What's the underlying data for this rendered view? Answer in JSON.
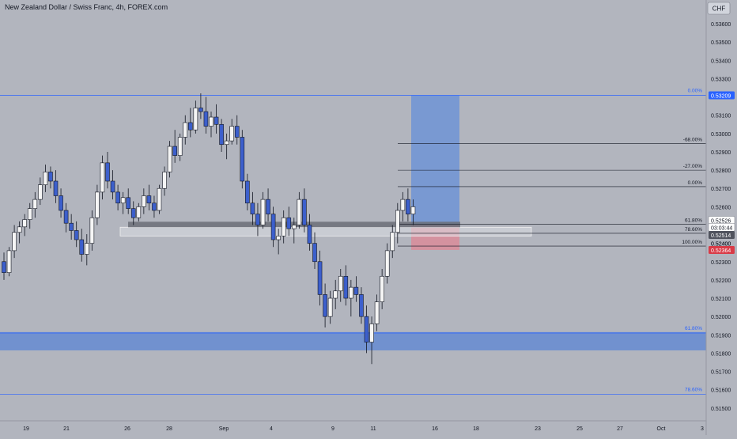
{
  "header": {
    "title": "New Zealand Dollar / Swiss Franc, 4h, FOREX.com"
  },
  "currency_badge": "CHF",
  "colors": {
    "background": "#b2b5be",
    "axis_panel": "#b2b5be",
    "candle_up": "#f5f5f5",
    "candle_down": "#3c5fcc",
    "wick": "#131722",
    "fib_blue": "#2962ff",
    "fib_black": "#131722",
    "target_zone": "#6f94d6",
    "stop_zone": "#d98c9a",
    "demand_zone": "#5b86d4",
    "label_blue_bg": "#2962ff",
    "label_red_bg": "#d93b47"
  },
  "price_axis": {
    "labels": [
      "0.53600",
      "0.53500",
      "0.53400",
      "0.53300",
      "0.53100",
      "0.53000",
      "0.52900",
      "0.52800",
      "0.52700",
      "0.52600",
      "0.52400",
      "0.52300",
      "0.52200",
      "0.52100",
      "0.52000",
      "0.51900",
      "0.51800",
      "0.51700",
      "0.51600",
      "0.51500"
    ],
    "values": [
      0.536,
      0.535,
      0.534,
      0.533,
      0.531,
      0.53,
      0.529,
      0.528,
      0.527,
      0.526,
      0.524,
      0.523,
      0.522,
      0.521,
      0.52,
      0.519,
      0.518,
      0.517,
      0.516,
      0.515
    ]
  },
  "time_axis": {
    "labels": [
      "19",
      "21",
      "26",
      "28",
      "Sep",
      "4",
      "9",
      "11",
      "16",
      "18",
      "23",
      "25",
      "27",
      "Oct",
      "3"
    ]
  },
  "price_tags": [
    {
      "text": "0.53209",
      "price": 0.53209,
      "style": "blue"
    },
    {
      "text": "0.52526",
      "price": 0.52526,
      "style": "white"
    },
    {
      "text": "03:03:44",
      "price": 0.52488,
      "style": "white"
    },
    {
      "text": "0.52514",
      "price": 0.52446,
      "style": "dark"
    },
    {
      "text": "0.52400",
      "price": 0.524,
      "style": "plain"
    },
    {
      "text": "0.52364",
      "price": 0.52364,
      "style": "red"
    }
  ],
  "fib_levels_right": [
    {
      "text": "-68.00%",
      "price": 0.52945,
      "color": "black"
    },
    {
      "text": "-27.00%",
      "price": 0.528,
      "color": "black"
    },
    {
      "text": "0.00%",
      "price": 0.5271,
      "color": "black"
    },
    {
      "text": "61.80%",
      "price": 0.52505,
      "color": "black"
    },
    {
      "text": "78.60%",
      "price": 0.52455,
      "color": "black"
    },
    {
      "text": "100.00%",
      "price": 0.52385,
      "color": "black"
    }
  ],
  "fib_levels_wide": [
    {
      "text": "0.00%",
      "price": 0.53209,
      "color": "blue"
    },
    {
      "text": "61.80%",
      "price": 0.5191,
      "color": "blue"
    },
    {
      "text": "78.60%",
      "price": 0.51575,
      "color": "blue"
    }
  ],
  "chart_data": {
    "type": "candlestick",
    "title": "New Zealand Dollar / Swiss Franc, 4h, FOREX.com",
    "ylim": [
      0.5143,
      0.5373
    ],
    "x_index_range": [
      0,
      260
    ],
    "candles": [
      [
        0.523,
        0.5235,
        0.522,
        0.5224
      ],
      [
        0.5224,
        0.5238,
        0.5222,
        0.5236
      ],
      [
        0.5236,
        0.525,
        0.5232,
        0.5246
      ],
      [
        0.5246,
        0.5252,
        0.524,
        0.5249
      ],
      [
        0.5249,
        0.5256,
        0.5244,
        0.5253
      ],
      [
        0.5253,
        0.5262,
        0.5248,
        0.5259
      ],
      [
        0.5259,
        0.5268,
        0.5254,
        0.5264
      ],
      [
        0.5264,
        0.5276,
        0.5261,
        0.5272
      ],
      [
        0.5272,
        0.5283,
        0.5268,
        0.5279
      ],
      [
        0.5279,
        0.5282,
        0.527,
        0.5274
      ],
      [
        0.5274,
        0.528,
        0.5262,
        0.5266
      ],
      [
        0.5266,
        0.527,
        0.5254,
        0.5258
      ],
      [
        0.5258,
        0.5262,
        0.5246,
        0.5251
      ],
      [
        0.5251,
        0.5256,
        0.5242,
        0.5247
      ],
      [
        0.5247,
        0.5252,
        0.5238,
        0.5242
      ],
      [
        0.5242,
        0.5248,
        0.523,
        0.5234
      ],
      [
        0.5234,
        0.5245,
        0.5228,
        0.524
      ],
      [
        0.524,
        0.5258,
        0.5236,
        0.5254
      ],
      [
        0.5254,
        0.5272,
        0.525,
        0.5268
      ],
      [
        0.5268,
        0.5288,
        0.5264,
        0.5284
      ],
      [
        0.5284,
        0.529,
        0.527,
        0.5274
      ],
      [
        0.5274,
        0.528,
        0.5264,
        0.5268
      ],
      [
        0.5268,
        0.5272,
        0.5258,
        0.5262
      ],
      [
        0.5262,
        0.5268,
        0.5256,
        0.5265
      ],
      [
        0.5265,
        0.527,
        0.5256,
        0.5259
      ],
      [
        0.5259,
        0.5263,
        0.525,
        0.5254
      ],
      [
        0.5254,
        0.5262,
        0.5252,
        0.526
      ],
      [
        0.526,
        0.527,
        0.5256,
        0.5266
      ],
      [
        0.5266,
        0.5272,
        0.5258,
        0.5262
      ],
      [
        0.5262,
        0.5266,
        0.5254,
        0.5258
      ],
      [
        0.5258,
        0.5272,
        0.5256,
        0.527
      ],
      [
        0.527,
        0.5282,
        0.5266,
        0.5279
      ],
      [
        0.5279,
        0.5296,
        0.5276,
        0.5293
      ],
      [
        0.5293,
        0.5302,
        0.5284,
        0.5288
      ],
      [
        0.5288,
        0.53,
        0.5285,
        0.5298
      ],
      [
        0.5298,
        0.531,
        0.5294,
        0.5306
      ],
      [
        0.5306,
        0.5314,
        0.5298,
        0.5302
      ],
      [
        0.5302,
        0.5318,
        0.53,
        0.5314
      ],
      [
        0.5314,
        0.5322,
        0.5308,
        0.5312
      ],
      [
        0.5312,
        0.532,
        0.53,
        0.5304
      ],
      [
        0.5304,
        0.5312,
        0.5298,
        0.5309
      ],
      [
        0.5309,
        0.5316,
        0.53,
        0.5305
      ],
      [
        0.5305,
        0.5308,
        0.529,
        0.5294
      ],
      [
        0.5294,
        0.53,
        0.5286,
        0.5296
      ],
      [
        0.5296,
        0.5308,
        0.5294,
        0.5304
      ],
      [
        0.5304,
        0.531,
        0.5294,
        0.5298
      ],
      [
        0.5298,
        0.5302,
        0.527,
        0.5274
      ],
      [
        0.5274,
        0.5278,
        0.5258,
        0.5262
      ],
      [
        0.5262,
        0.5268,
        0.525,
        0.5256
      ],
      [
        0.5256,
        0.5262,
        0.5244,
        0.525
      ],
      [
        0.525,
        0.5268,
        0.5248,
        0.5264
      ],
      [
        0.5264,
        0.527,
        0.5252,
        0.5256
      ],
      [
        0.5256,
        0.526,
        0.5238,
        0.5242
      ],
      [
        0.5242,
        0.5248,
        0.5234,
        0.5244
      ],
      [
        0.5244,
        0.5258,
        0.524,
        0.5254
      ],
      [
        0.5254,
        0.526,
        0.5244,
        0.5248
      ],
      [
        0.5248,
        0.5254,
        0.524,
        0.525
      ],
      [
        0.525,
        0.5268,
        0.5248,
        0.5264
      ],
      [
        0.5264,
        0.527,
        0.5246,
        0.525
      ],
      [
        0.525,
        0.5256,
        0.5236,
        0.524
      ],
      [
        0.524,
        0.5246,
        0.5226,
        0.523
      ],
      [
        0.523,
        0.5236,
        0.5206,
        0.5212
      ],
      [
        0.5212,
        0.5218,
        0.5194,
        0.52
      ],
      [
        0.52,
        0.5214,
        0.5196,
        0.521
      ],
      [
        0.521,
        0.522,
        0.5204,
        0.5214
      ],
      [
        0.5214,
        0.5226,
        0.5208,
        0.5222
      ],
      [
        0.5222,
        0.5228,
        0.5206,
        0.521
      ],
      [
        0.521,
        0.522,
        0.52,
        0.5216
      ],
      [
        0.5216,
        0.5222,
        0.5208,
        0.5212
      ],
      [
        0.5212,
        0.5216,
        0.5196,
        0.52
      ],
      [
        0.52,
        0.5206,
        0.518,
        0.5186
      ],
      [
        0.5186,
        0.52,
        0.5174,
        0.5196
      ],
      [
        0.5196,
        0.5212,
        0.5192,
        0.5208
      ],
      [
        0.5208,
        0.5226,
        0.5204,
        0.5222
      ],
      [
        0.5222,
        0.524,
        0.5218,
        0.5236
      ],
      [
        0.5236,
        0.525,
        0.5232,
        0.5246
      ],
      [
        0.5246,
        0.5262,
        0.524,
        0.5258
      ],
      [
        0.5258,
        0.5268,
        0.5252,
        0.5264
      ],
      [
        0.5264,
        0.527,
        0.5252,
        0.5256
      ],
      [
        0.5256,
        0.5264,
        0.525,
        0.526
      ]
    ]
  }
}
